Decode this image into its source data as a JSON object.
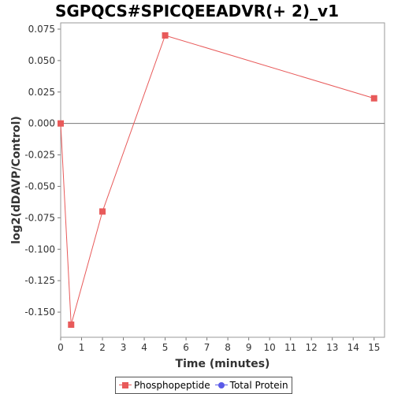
{
  "chart_data": {
    "type": "line",
    "title": "SGPQCS#SPICQEEADVR(+ 2)_v1",
    "xlabel": "Time (minutes)",
    "ylabel": "log2(dDAVP/Control)",
    "xlim": [
      0,
      15.5
    ],
    "ylim": [
      -0.17,
      0.08
    ],
    "x_ticks": [
      0,
      1,
      2,
      3,
      4,
      5,
      6,
      7,
      8,
      9,
      10,
      11,
      12,
      13,
      14,
      15
    ],
    "y_ticks": [
      0.075,
      0.05,
      0.025,
      0.0,
      -0.025,
      -0.05,
      -0.075,
      -0.1,
      -0.125,
      -0.15
    ],
    "y_tick_labels": [
      "0.075",
      "0.050",
      "0.025",
      "0.000",
      "-0.025",
      "-0.050",
      "-0.075",
      "-0.100",
      "-0.125",
      "-0.150"
    ],
    "zero_line": true,
    "grid": false,
    "legend_position": "bottom",
    "series": [
      {
        "name": "Phosphopeptide",
        "color": "#e85a5a",
        "marker": "square",
        "x": [
          0,
          0.5,
          2,
          5,
          15
        ],
        "y": [
          0.0,
          -0.16,
          -0.07,
          0.07,
          0.02
        ]
      },
      {
        "name": "Total Protein",
        "color": "#5a5ae8",
        "marker": "circle",
        "x": [],
        "y": []
      }
    ]
  }
}
